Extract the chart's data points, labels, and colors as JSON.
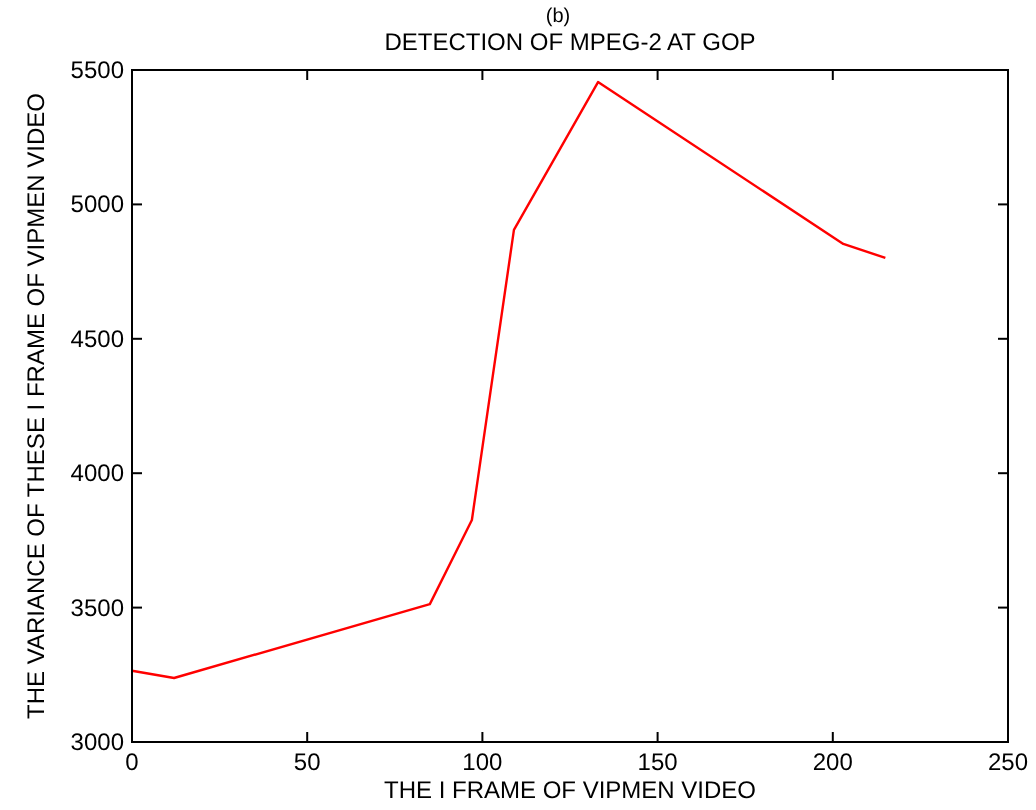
{
  "chart_data": {
    "type": "line",
    "title": "DETECTION OF MPEG-2 AT GOP",
    "xlabel": "THE I FRAME OF VIPMEN VIDEO",
    "ylabel": "THE VARIANCE OF THESE I FRAME OF VIPMEN VIDEO",
    "annotations": [
      "(b)"
    ],
    "x": [
      0,
      12,
      85,
      97,
      109,
      133,
      203,
      215
    ],
    "series": [
      {
        "color": "#ff0000",
        "values": [
          3265,
          3238,
          3513,
          3826,
          4905,
          5455,
          4853,
          4801
        ]
      }
    ],
    "xlim": [
      0,
      250
    ],
    "xticks": [
      0,
      50,
      100,
      150,
      200,
      250
    ],
    "ylim": [
      3000,
      5500
    ],
    "yticks": [
      3000,
      3500,
      4000,
      4500,
      5000,
      5500
    ],
    "grid": false,
    "marker": "none",
    "line_style": "solid"
  }
}
